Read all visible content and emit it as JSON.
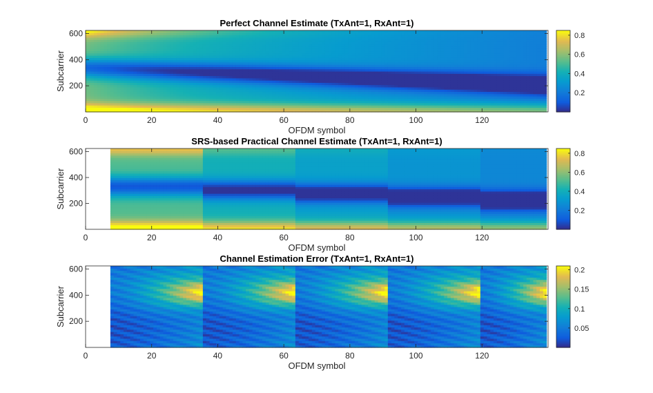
{
  "figure": {
    "background": "#ffffff"
  },
  "chart_data": [
    {
      "type": "heatmap",
      "title": "Perfect Channel Estimate (TxAnt=1, RxAnt=1)",
      "xlabel": "OFDM symbol",
      "ylabel": "Subcarrier",
      "xlim": [
        0,
        140
      ],
      "ylim": [
        0,
        624
      ],
      "xticks": [
        0,
        20,
        40,
        60,
        80,
        100,
        120
      ],
      "yticks": [
        200,
        400,
        600
      ],
      "colormap": "parula",
      "colorbar": {
        "ticks": [
          "0.2",
          "0.4",
          "0.6",
          "0.8"
        ],
        "clim": [
          0,
          0.85
        ]
      },
      "blank_until_symbol": 0,
      "segments": [
        0,
        140
      ],
      "description_of_field": "smooth magnitude; high near subcarrier 0 and 600, low diagonal ridge toward large symbols"
    },
    {
      "type": "heatmap",
      "title": "SRS-based Practical Channel Estimate (TxAnt=1, RxAnt=1)",
      "xlabel": "OFDM symbol",
      "ylabel": "Subcarrier",
      "xlim": [
        0,
        140
      ],
      "ylim": [
        0,
        624
      ],
      "xticks": [
        0,
        20,
        40,
        60,
        80,
        100,
        120
      ],
      "yticks": [
        200,
        400,
        600
      ],
      "colormap": "parula",
      "colorbar": {
        "ticks": [
          "0.2",
          "0.4",
          "0.6",
          "0.8"
        ],
        "clim": [
          0,
          0.85
        ]
      },
      "blank_until_symbol": 7.5,
      "segments": [
        7.5,
        35.5,
        63.5,
        91.5,
        119.5,
        140
      ]
    },
    {
      "type": "heatmap",
      "title": "Channel Estimation Error (TxAnt=1, RxAnt=1)",
      "xlabel": "OFDM symbol",
      "ylabel": "Subcarrier",
      "xlim": [
        0,
        140
      ],
      "ylim": [
        0,
        624
      ],
      "xticks": [
        0,
        20,
        40,
        60,
        80,
        100,
        120
      ],
      "yticks": [
        200,
        400,
        600
      ],
      "colormap": "parula",
      "colorbar": {
        "ticks": [
          "0.05",
          "0.1",
          "0.15",
          "0.2"
        ],
        "clim": [
          0,
          0.21
        ]
      },
      "blank_until_symbol": 7.5,
      "segments": [
        7.5,
        35.5,
        63.5,
        91.5,
        119.5,
        140
      ]
    }
  ]
}
